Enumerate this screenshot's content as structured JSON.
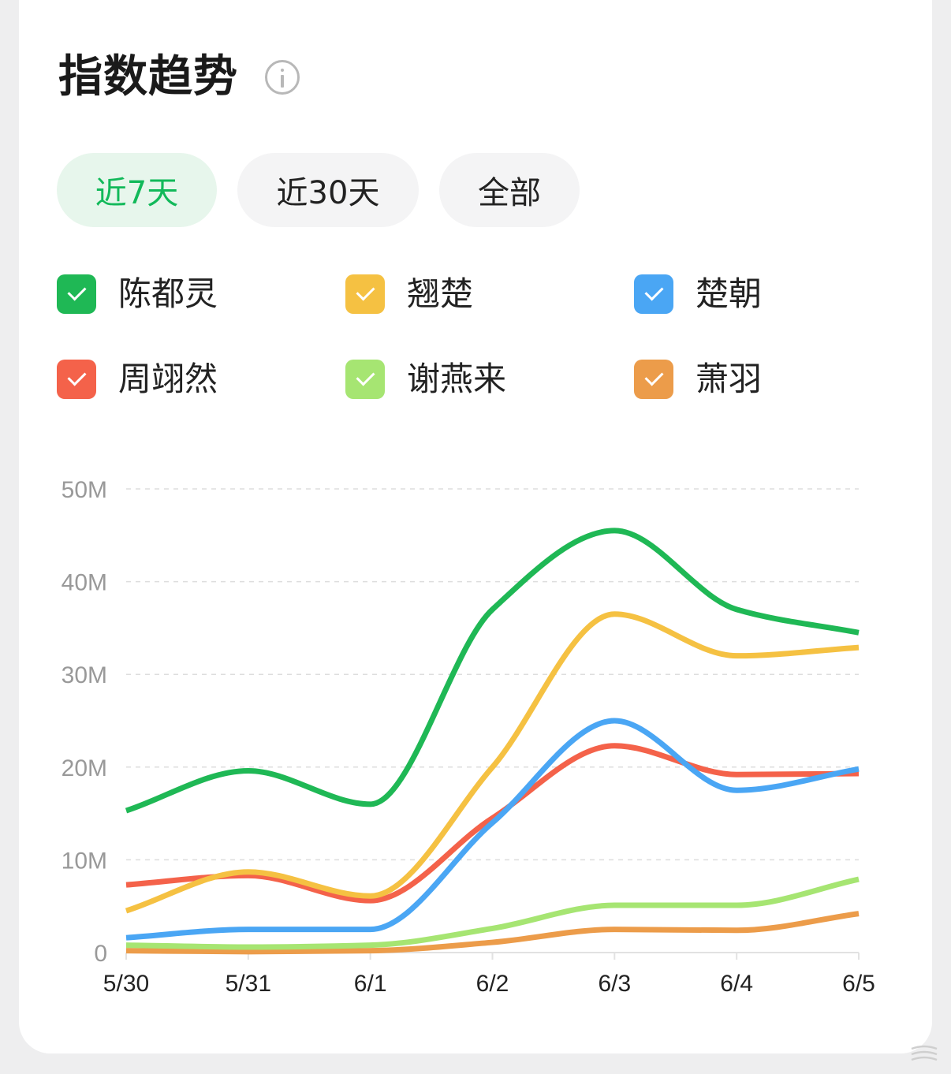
{
  "header": {
    "title": "指数趋势",
    "info_icon": "info-icon"
  },
  "tabs": [
    {
      "label": "近7天",
      "active": true
    },
    {
      "label": "近30天",
      "active": false
    },
    {
      "label": "全部",
      "active": false
    }
  ],
  "colors": {
    "accent": "#12b95a",
    "tab_active_bg": "#e7f6ec",
    "tab_bg": "#f4f4f5",
    "grid": "#dddddd"
  },
  "chart_data": {
    "type": "line",
    "x": [
      "5/30",
      "5/31",
      "6/1",
      "6/2",
      "6/3",
      "6/4",
      "6/5"
    ],
    "y_ticks": [
      "0",
      "10M",
      "20M",
      "30M",
      "40M",
      "50M"
    ],
    "ylim": [
      0,
      50
    ],
    "y_unit": "M",
    "grid": true,
    "grid_style": "dashed",
    "legend_position": "top",
    "series": [
      {
        "name": "陈都灵",
        "color": "#1fb855",
        "values": [
          15.3,
          19.6,
          16.0,
          37.0,
          45.5,
          37.0,
          34.5
        ]
      },
      {
        "name": "翘楚",
        "color": "#f5c142",
        "values": [
          4.5,
          8.7,
          6.1,
          20.0,
          36.5,
          32.0,
          32.9
        ]
      },
      {
        "name": "楚朝",
        "color": "#4aa6f4",
        "values": [
          1.6,
          2.5,
          2.5,
          14.0,
          25.0,
          17.5,
          19.8
        ]
      },
      {
        "name": "周翊然",
        "color": "#f4624a",
        "values": [
          7.3,
          8.3,
          5.6,
          14.5,
          22.3,
          19.2,
          19.3
        ]
      },
      {
        "name": "谢燕来",
        "color": "#a6e572",
        "values": [
          0.8,
          0.6,
          0.8,
          2.6,
          5.1,
          5.1,
          7.9
        ]
      },
      {
        "name": "萧羽",
        "color": "#ec9c4a",
        "values": [
          0.2,
          0.1,
          0.2,
          1.1,
          2.5,
          2.4,
          4.2
        ]
      }
    ]
  }
}
